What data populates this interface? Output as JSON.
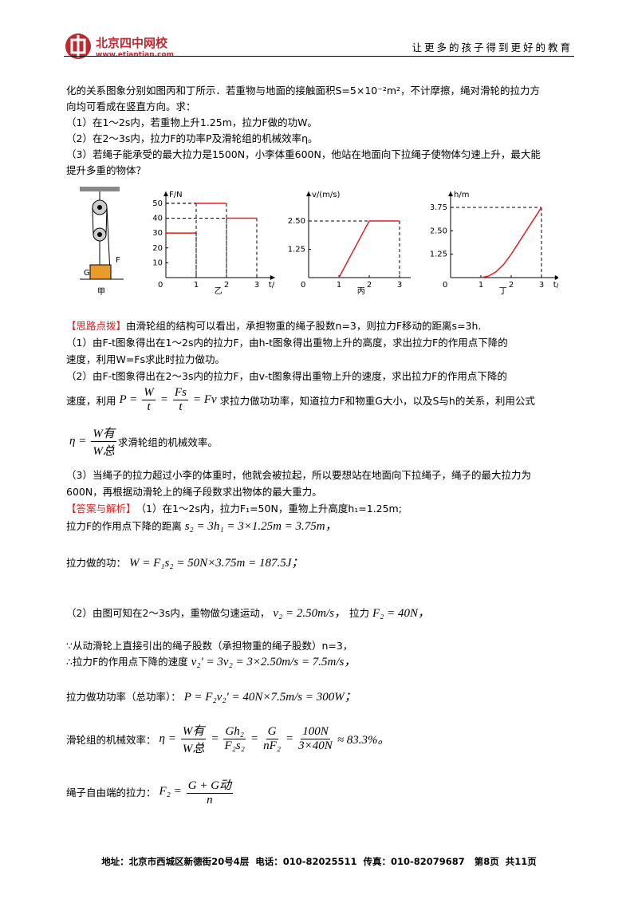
{
  "header": {
    "logo": "北京四中网校",
    "url": "www.etiantian.com",
    "slogan": "让更多的孩子得到更好的教育"
  },
  "lines": [
    [
      {
        "t": "化的关系图象分别如图丙和丁所示．若重物与地面的接触面积S=5×10⁻²m²，不计摩擦，绳对滑轮的拉力方"
      }
    ],
    [
      {
        "t": "向均可看成在竖直方向。求："
      }
    ],
    [
      {
        "t": "（1）在1～2s内，若重物上升1.25m，拉力F做的功W。"
      }
    ],
    [
      {
        "t": "（2）在2～3s内，拉力F的功率P及滑轮组的机械效率η。"
      }
    ],
    [
      {
        "t": "（3）若绳子能承受的最大拉力是1500N，小李体重600N，他站在地面向下拉绳子使物体匀速上升，最大能"
      }
    ],
    [
      {
        "t": "提升多重的物体？"
      }
    ],
    [
      {
        "label": "【思路点拨】"
      },
      {
        "t": "由滑轮组的结构可以看出，承担物重的绳子股数n=3，则拉力F移动的距离s=3h."
      }
    ],
    [
      {
        "t": "（1）由F-t图象得出在1～2s内的拉力F，由h-t图象得出重物上升的高度，求出拉力F的作用点下降的"
      }
    ],
    [
      {
        "t": "速度，利用W=Fs求此时拉力做功。"
      }
    ],
    [
      {
        "t": "（2）由F-t图象得出在2～3s内的拉力F，由v-t图象得出重物上升的速度，求出拉力F的作用点下降的"
      }
    ],
    [
      {
        "t": "速度，利用"
      },
      {
        "m": "P ="
      },
      {
        "num": "W",
        "den": "t"
      },
      {
        "m": "="
      },
      {
        "num": "Fs",
        "den": "t"
      },
      {
        "m": "= Fv"
      },
      {
        "t": "求拉力做功功率，知道拉力F和物重G大小，以及S与h的关系，利用公式"
      }
    ],
    [
      {
        "m": "η ="
      },
      {
        "num": "W有",
        "den": "W总"
      },
      {
        "t": "求滑轮组的机械效率。"
      }
    ],
    [
      {
        "t": "（3）当绳子的拉力超过小李的体重时，他就会被拉起，所以要想站在地面向下拉绳子，绳子的最大拉力为"
      }
    ],
    [
      {
        "t": "600N，再根据动滑轮上的绳子段数求出物体的最大重力。"
      }
    ],
    [
      {
        "label": "【答案与解析】"
      },
      {
        "t": "（1）在1～2s内，拉力F₁=50N，重物上升高度h₁=1.25m;"
      }
    ],
    [
      {
        "t": "拉力F的作用点下降的距离"
      },
      {
        "m": "s₂ = 3h₁ = 3×1.25m = 3.75m，"
      }
    ],
    [
      {
        "t": "拉力做的功："
      },
      {
        "m": "W = F₁s₂ = 50N×3.75m = 187.5J；"
      }
    ],
    [
      {
        "t": "（2）由图可知在2～3s内，重物做匀速运动，"
      },
      {
        "m": "v₂ = 2.50m/s，"
      },
      {
        "t": "拉力"
      },
      {
        "m": "F₂ = 40N，"
      }
    ],
    [
      {
        "t": "∵从动滑轮上直接引出的绳子股数（承担物重的绳子股数）n=3，"
      }
    ],
    [
      {
        "t": "∴拉力F的作用点下降的速度"
      },
      {
        "m": "v₂′ = 3v₂ = 3×2.50m/s = 7.5m/s，"
      }
    ],
    [
      {
        "t": "拉力做功功率（总功率）："
      },
      {
        "m": "P = F₂v₂′ = 40N×7.5m/s = 300W；"
      }
    ],
    [
      {
        "t": "滑轮组的机械效率："
      },
      {
        "m": "η ="
      },
      {
        "num": "W有",
        "den": "W总"
      },
      {
        "m": "="
      },
      {
        "num": "Gh₂",
        "den": "F₂s₂"
      },
      {
        "m": "="
      },
      {
        "num": "G",
        "den": "nF₂"
      },
      {
        "m": "="
      },
      {
        "num": "100N",
        "den": "3×40N"
      },
      {
        "m": "≈ 83.3%。"
      }
    ],
    [
      {
        "t": "绳子自由端的拉力："
      },
      {
        "m": "F₂ ="
      },
      {
        "num": "G + G动",
        "den": "n"
      }
    ]
  ],
  "figure_jia": {
    "caption": "甲",
    "force": "F",
    "weight": "G"
  },
  "charts": [
    {
      "type": "line",
      "caption": "乙",
      "ylabel": "F/N",
      "xlabel": "t/s",
      "origin": "0",
      "xlim": [
        0,
        3.6
      ],
      "ylim": [
        0,
        58
      ],
      "xticks": [
        1,
        2,
        3
      ],
      "yticks": [
        10,
        20,
        30,
        40,
        50
      ],
      "series": [
        {
          "color": "#e02020",
          "x": [
            0,
            1
          ],
          "values": [
            30,
            30
          ]
        },
        {
          "color": "#e02020",
          "x": [
            1,
            2
          ],
          "values": [
            50,
            50
          ]
        },
        {
          "color": "#e02020",
          "x": [
            2,
            3
          ],
          "values": [
            40,
            40
          ]
        }
      ]
    },
    {
      "type": "line",
      "caption": "丙",
      "ylabel": "v/(m/s)",
      "xlabel": "t/s",
      "origin": "0",
      "xlim": [
        0,
        3.6
      ],
      "ylim": [
        0,
        3.8
      ],
      "xticks": [
        1,
        2,
        3
      ],
      "yticks": [
        1.25,
        {
          "value": 2.5,
          "label": "2.50"
        }
      ],
      "series": [
        {
          "color": "#e02020",
          "x": [
            1,
            2,
            3
          ],
          "values": [
            0,
            2.5,
            2.5
          ]
        }
      ]
    },
    {
      "type": "line",
      "caption": "丁",
      "ylabel": "h/m",
      "xlabel": "t/s",
      "origin": "0",
      "xlim": [
        0,
        3.6
      ],
      "ylim": [
        0,
        4.6
      ],
      "xticks": [
        1,
        2,
        3
      ],
      "yticks": [
        1.25,
        {
          "value": 2.5,
          "label": "2.50"
        },
        3.75
      ],
      "series": [
        {
          "color": "#e02020",
          "x": [
            1,
            1.25,
            1.5,
            1.75,
            2,
            3
          ],
          "values": [
            0,
            0.08,
            0.31,
            0.7,
            1.25,
            3.75
          ]
        }
      ]
    }
  ],
  "footer": "地址：北京市西城区新德街20号4层  电话：010-82025511  传真：010-82079687   第8页  共11页"
}
